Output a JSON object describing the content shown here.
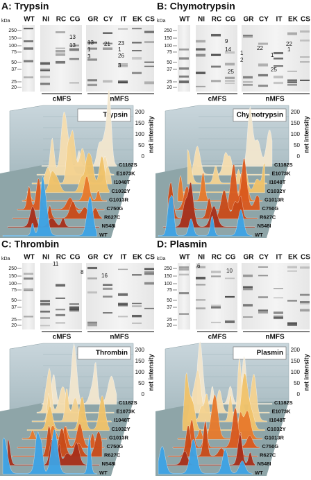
{
  "panels": [
    {
      "title": "A: Trypsin",
      "kda_label": "kDa",
      "kda_markers": [
        250,
        150,
        100,
        75,
        50,
        37,
        25,
        20
      ],
      "lanes": [
        "WT",
        "NI",
        "RC",
        "CG",
        "GR",
        "CY",
        "IT",
        "EK",
        "CS"
      ],
      "groups": [
        "cMFS",
        "nMFS"
      ],
      "band_labels": [
        "13",
        "13",
        "13",
        "21",
        "1",
        "3",
        "23",
        "1",
        "26",
        "3"
      ],
      "plot": {
        "title": "Trypsin",
        "axis_ticks": [
          200,
          150,
          100,
          50,
          0
        ],
        "axis_label": "net intensity",
        "series": [
          "C1182S",
          "E1073K",
          "I1048T",
          "C1032Y",
          "G1013R",
          "C750G",
          "R627C",
          "N548I",
          "WT"
        ]
      }
    },
    {
      "title": "B: Chymotrypsin",
      "kda_label": "kDa",
      "kda_markers": [
        250,
        150,
        100,
        75,
        50,
        37,
        25,
        20
      ],
      "lanes": [
        "WT",
        "NI",
        "RC",
        "CG",
        "GR",
        "CY",
        "IT",
        "EK",
        "CS"
      ],
      "groups": [
        "cMFS",
        "nMFS"
      ],
      "band_labels": [
        "9",
        "14",
        "25",
        "22",
        "1",
        "2",
        "1",
        "25",
        "22",
        "1"
      ],
      "plot": {
        "title": "Chymotrypsin",
        "axis_ticks": [
          200,
          150,
          100,
          50,
          0
        ],
        "axis_label": "net intensity",
        "series": [
          "C1182S",
          "E1073K",
          "I1048T",
          "C1032Y",
          "G1013R",
          "C750G",
          "R627C",
          "N548I",
          "WT"
        ]
      }
    },
    {
      "title": "C: Thrombin",
      "kda_label": "kDa",
      "kda_markers": [
        250,
        150,
        100,
        75,
        50,
        37,
        25,
        20
      ],
      "lanes": [
        "WT",
        "NI",
        "RC",
        "CG",
        "GR",
        "CY",
        "IT",
        "EK",
        "CS"
      ],
      "groups": [
        "cMFS",
        "nMFS"
      ],
      "band_labels": [
        "11",
        "8",
        "16"
      ],
      "plot": {
        "title": "Thrombin",
        "axis_ticks": [
          200,
          150,
          100,
          50,
          0
        ],
        "axis_label": "net intensity",
        "series": [
          "C1182S",
          "E1073K",
          "I1048T",
          "C1032Y",
          "G1013R",
          "C750G",
          "R627C",
          "N548I",
          "WT"
        ]
      }
    },
    {
      "title": "D: Plasmin",
      "kda_label": "kDa",
      "kda_markers": [
        250,
        150,
        100,
        75,
        50,
        37,
        25,
        20
      ],
      "lanes": [
        "WT",
        "NI",
        "RC",
        "CG",
        "GR",
        "CY",
        "IT",
        "EK",
        "CS"
      ],
      "groups": [
        "cMFS",
        "nMFS"
      ],
      "band_labels": [
        "6",
        "10"
      ],
      "plot": {
        "title": "Plasmin",
        "axis_ticks": [
          200,
          150,
          100,
          50,
          0
        ],
        "axis_label": "net intensity",
        "series": [
          "C1182S",
          "E1073K",
          "I1048T",
          "C1032Y",
          "G1013R",
          "C750G",
          "R627C",
          "N548I",
          "WT"
        ]
      }
    }
  ]
}
